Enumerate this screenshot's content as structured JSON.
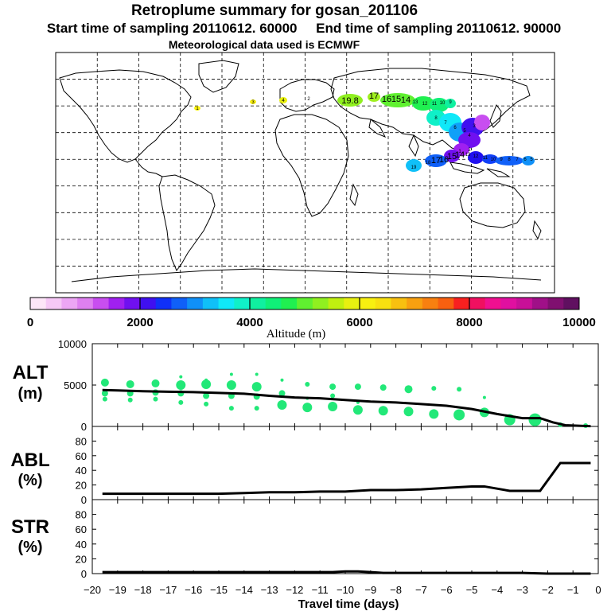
{
  "title": {
    "line1": "Retroplume summary for gosan_201106",
    "line2": "Start time of sampling 20110612. 60000     End time of sampling 20110612. 90000",
    "line3": "Meteorological data used is ECMWF"
  },
  "colorbar": {
    "label": "Altitude (m)",
    "tick_labels": [
      "0",
      "2000",
      "4000",
      "6000",
      "8000",
      "10000"
    ],
    "colors": [
      "#fde6f8",
      "#f6c8f6",
      "#eca6f4",
      "#de80f0",
      "#c84ef0",
      "#a020f0",
      "#7010f0",
      "#4010f0",
      "#1030f8",
      "#1060f8",
      "#1090f8",
      "#10c0f8",
      "#10e8f8",
      "#10f0c8",
      "#10f0a0",
      "#10f078",
      "#20f050",
      "#60f030",
      "#90f020",
      "#c0f010",
      "#e8f010",
      "#f8f010",
      "#f8e010",
      "#f8c010",
      "#f8a010",
      "#f88010",
      "#f86010",
      "#f82020",
      "#f01060",
      "#f01090",
      "#e010a0",
      "#c81098",
      "#a01088",
      "#801070",
      "#601060"
    ],
    "min": 0,
    "max": 10000
  },
  "map": {
    "trajectory_labels": [
      "19.8",
      "17",
      "16",
      "15",
      "14",
      "13",
      "12",
      "11",
      "10",
      "9",
      "8",
      "7",
      "6",
      "5",
      "4",
      "3",
      "2",
      "1",
      "19",
      "18",
      "17",
      "16",
      "15",
      "14",
      "13",
      "12",
      "11",
      "10",
      "9",
      "8",
      "7",
      "6",
      "5",
      "4",
      "3",
      "2",
      "1"
    ]
  },
  "chart_data": [
    {
      "type": "line",
      "panel": "ALT",
      "ylabel": "ALT",
      "yunit": "(m)",
      "ylim": [
        0,
        10000
      ],
      "yticks": [
        "0",
        "5000",
        "10000"
      ],
      "line_x": [
        -19.6,
        -19,
        -18,
        -17,
        -16,
        -15,
        -14,
        -13,
        -12,
        -11,
        -10,
        -9,
        -8,
        -7,
        -6,
        -5,
        -4,
        -3,
        -2.3,
        -1.8,
        -1.3,
        -0.8,
        -0.3
      ],
      "line_y": [
        4400,
        4350,
        4250,
        4200,
        4150,
        4050,
        3950,
        3700,
        3500,
        3400,
        3200,
        3000,
        2900,
        2700,
        2500,
        2100,
        1500,
        1000,
        1000,
        500,
        150,
        80,
        30
      ],
      "dots_x": [
        -19.5,
        -19.5,
        -19.5,
        -18.5,
        -18.5,
        -18.5,
        -17.5,
        -17.5,
        -17.5,
        -16.5,
        -16.5,
        -16.5,
        -16.5,
        -15.5,
        -15.5,
        -15.5,
        -15.5,
        -14.5,
        -14.5,
        -14.5,
        -14.5,
        -13.5,
        -13.5,
        -13.5,
        -13.5,
        -12.5,
        -12.5,
        -12.5,
        -11.5,
        -11.5,
        -11.5,
        -10.5,
        -10.5,
        -10.5,
        -9.5,
        -9.5,
        -9.5,
        -8.5,
        -8.5,
        -7.5,
        -7.5,
        -6.5,
        -6.5,
        -5.5,
        -5.5,
        -4.5,
        -4.5,
        -3.5,
        -3.5,
        -2.5,
        -1.5,
        -0.5
      ],
      "dots_y": [
        5300,
        4000,
        3300,
        5100,
        4000,
        3200,
        5200,
        4100,
        3300,
        6000,
        5000,
        4000,
        2900,
        5600,
        5100,
        3700,
        2700,
        6300,
        5000,
        3700,
        2200,
        6300,
        4800,
        3600,
        2200,
        5600,
        4000,
        2600,
        5100,
        3400,
        2300,
        4800,
        3700,
        2400,
        4800,
        2900,
        2000,
        4700,
        1900,
        4500,
        1800,
        4600,
        1500,
        4500,
        1400,
        3500,
        1700,
        1200,
        800,
        800,
        200,
        100
      ],
      "dots_size": [
        5,
        4,
        3,
        5,
        4,
        3,
        5,
        4,
        3,
        2,
        6,
        4,
        3,
        2,
        6,
        4,
        3,
        2,
        6,
        4,
        3,
        2,
        6,
        4,
        3,
        2,
        4,
        6,
        3,
        2,
        6,
        4,
        3,
        6,
        4,
        2,
        6,
        4,
        6,
        5,
        6,
        3,
        6,
        3,
        7,
        2,
        6,
        3,
        7,
        8,
        3,
        3
      ],
      "dot_color": "#22e878"
    },
    {
      "type": "line",
      "panel": "ABL",
      "ylabel": "ABL",
      "yunit": "(%)",
      "ylim": [
        0,
        100
      ],
      "yticks": [
        "0",
        "20",
        "40",
        "60",
        "80"
      ],
      "x": [
        -19.6,
        -19,
        -18,
        -17,
        -16,
        -15,
        -14,
        -13,
        -12,
        -11,
        -10,
        -9,
        -8,
        -7,
        -6,
        -5,
        -4.5,
        -4,
        -3.5,
        -3,
        -2.3,
        -1.5,
        -1,
        -0.3
      ],
      "y": [
        8,
        8,
        8,
        8,
        8,
        8,
        9,
        10,
        10,
        11,
        11,
        13,
        13,
        14,
        16,
        18,
        18,
        15,
        12,
        12,
        12,
        50,
        50,
        50
      ]
    },
    {
      "type": "line",
      "panel": "STR",
      "ylabel": "STR",
      "yunit": "(%)",
      "ylim": [
        0,
        100
      ],
      "yticks": [
        "0",
        "20",
        "40",
        "60",
        "80"
      ],
      "x": [
        -19.6,
        -19,
        -18,
        -17,
        -16,
        -15,
        -14,
        -13,
        -12,
        -11,
        -10.5,
        -10,
        -9.5,
        -9,
        -8.5,
        -8,
        -7,
        -6,
        -5,
        -4,
        -3,
        -2,
        -1,
        -0.3
      ],
      "y": [
        2,
        2,
        2,
        2,
        2,
        2,
        2,
        2,
        2,
        2,
        2,
        3,
        3,
        2,
        1,
        1,
        1,
        1,
        1,
        1,
        1,
        0,
        0,
        0
      ]
    }
  ],
  "xaxis": {
    "label": "Travel time (days)",
    "xlim": [
      -20,
      0
    ],
    "tick_labels": [
      "−20",
      "−19",
      "−18",
      "−17",
      "−16",
      "−15",
      "−14",
      "−13",
      "−12",
      "−11",
      "−10",
      "−9",
      "−8",
      "−7",
      "−6",
      "−5",
      "−4",
      "−3",
      "−2",
      "−1",
      "0"
    ]
  }
}
